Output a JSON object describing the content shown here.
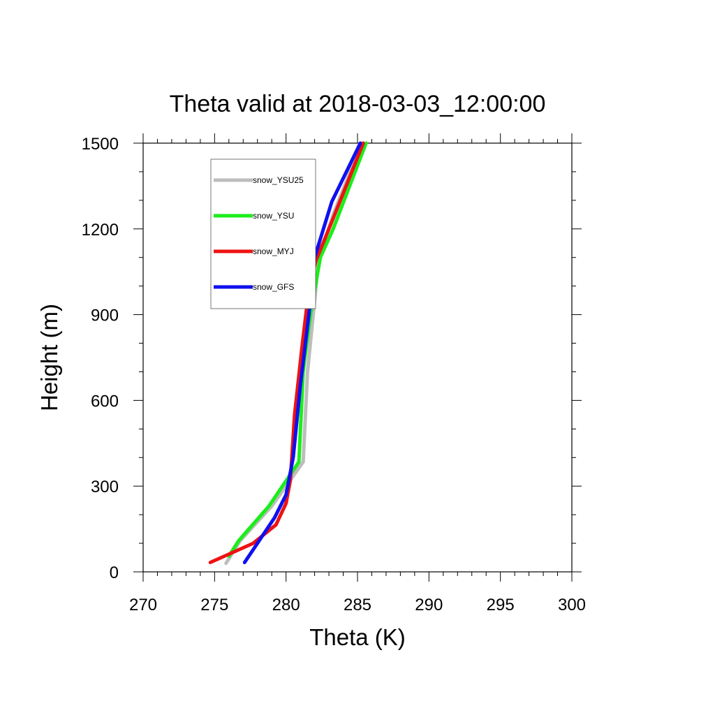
{
  "chart_data": {
    "type": "line",
    "title": "Theta valid at 2018-03-03_12:00:00",
    "xlabel": "Theta (K)",
    "ylabel": "Height (m)",
    "xlim": [
      270,
      300
    ],
    "ylim": [
      0,
      1500
    ],
    "x_ticks": [
      "270",
      "275",
      "280",
      "285",
      "290",
      "295",
      "300"
    ],
    "y_ticks": [
      "0",
      "300",
      "600",
      "900",
      "1200",
      "1500"
    ],
    "grid": false,
    "legend_position": "top-left",
    "series": [
      {
        "name": "snow_YSU25",
        "color": "#bdbdbd",
        "points": [
          [
            275.8,
            30
          ],
          [
            276.8,
            110
          ],
          [
            279.0,
            230
          ],
          [
            281.2,
            385
          ],
          [
            281.5,
            700
          ],
          [
            281.9,
            900
          ],
          [
            282.3,
            1100
          ],
          [
            283.3,
            1250
          ],
          [
            285.2,
            1490
          ]
        ]
      },
      {
        "name": "snow_YSU",
        "color": "#1aee1a",
        "points": [
          [
            276.0,
            55
          ],
          [
            276.7,
            110
          ],
          [
            278.8,
            230
          ],
          [
            280.9,
            385
          ],
          [
            281.2,
            700
          ],
          [
            281.7,
            900
          ],
          [
            282.4,
            1100
          ],
          [
            283.3,
            1200
          ],
          [
            285.6,
            1500
          ]
        ]
      },
      {
        "name": "snow_MYJ",
        "color": "#ee1212",
        "points": [
          [
            274.7,
            33
          ],
          [
            277.7,
            100
          ],
          [
            279.3,
            165
          ],
          [
            280.0,
            240
          ],
          [
            280.3,
            320
          ],
          [
            280.6,
            550
          ],
          [
            281.1,
            780
          ],
          [
            281.6,
            990
          ],
          [
            282.1,
            1090
          ],
          [
            283.0,
            1200
          ],
          [
            285.4,
            1500
          ]
        ]
      },
      {
        "name": "snow_GFS",
        "color": "#1010ee",
        "points": [
          [
            277.1,
            33
          ],
          [
            278.0,
            100
          ],
          [
            279.2,
            190
          ],
          [
            280.0,
            270
          ],
          [
            280.5,
            400
          ],
          [
            281.0,
            650
          ],
          [
            281.6,
            900
          ],
          [
            282.0,
            1100
          ],
          [
            283.2,
            1295
          ],
          [
            285.2,
            1500
          ]
        ]
      }
    ]
  }
}
